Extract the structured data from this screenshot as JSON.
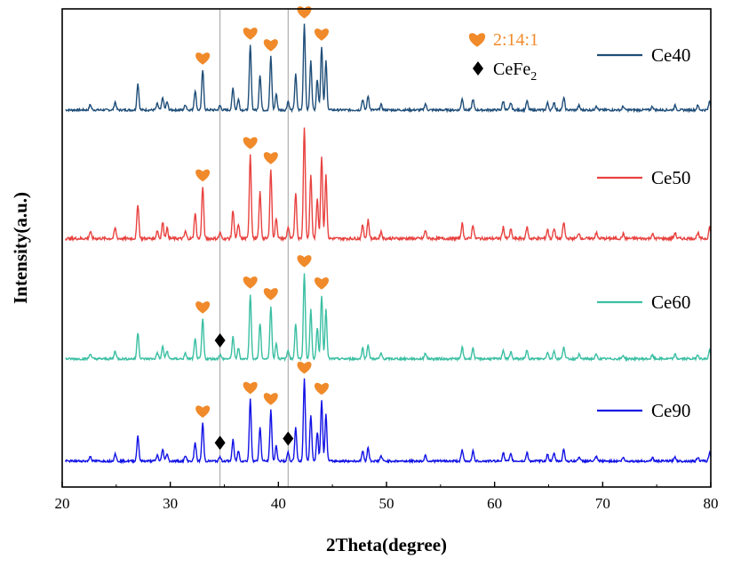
{
  "chart_data": {
    "type": "line",
    "xlabel": "2Theta(degree)",
    "ylabel": "Intensity(a.u.)",
    "xlim": [
      20,
      80
    ],
    "xticks": [
      20,
      30,
      40,
      50,
      60,
      70,
      80
    ],
    "vertical_reference_lines": [
      34.6,
      40.9
    ],
    "series": [
      {
        "name": "Ce40",
        "color": "#1f4e79",
        "offset": 3
      },
      {
        "name": "Ce50",
        "color": "#e8423f",
        "offset": 2
      },
      {
        "name": "Ce60",
        "color": "#3bbfa3",
        "offset": 1
      },
      {
        "name": "Ce90",
        "color": "#1212e6",
        "offset": 0
      }
    ],
    "peaks": [
      {
        "x": 22.6,
        "h": 0.06
      },
      {
        "x": 24.9,
        "h": 0.09
      },
      {
        "x": 27.0,
        "h": 0.3
      },
      {
        "x": 28.8,
        "h": 0.07
      },
      {
        "x": 29.3,
        "h": 0.14
      },
      {
        "x": 29.7,
        "h": 0.09
      },
      {
        "x": 31.4,
        "h": 0.06
      },
      {
        "x": 32.3,
        "h": 0.22
      },
      {
        "x": 33.0,
        "h": 0.45
      },
      {
        "x": 34.6,
        "h": 0.05
      },
      {
        "x": 35.8,
        "h": 0.25
      },
      {
        "x": 36.3,
        "h": 0.12
      },
      {
        "x": 37.4,
        "h": 0.73
      },
      {
        "x": 38.3,
        "h": 0.4
      },
      {
        "x": 39.3,
        "h": 0.6
      },
      {
        "x": 39.8,
        "h": 0.18
      },
      {
        "x": 40.9,
        "h": 0.1
      },
      {
        "x": 41.6,
        "h": 0.4
      },
      {
        "x": 42.4,
        "h": 0.97
      },
      {
        "x": 43.0,
        "h": 0.55
      },
      {
        "x": 43.6,
        "h": 0.35
      },
      {
        "x": 44.0,
        "h": 0.72
      },
      {
        "x": 44.4,
        "h": 0.55
      },
      {
        "x": 47.8,
        "h": 0.12
      },
      {
        "x": 48.3,
        "h": 0.16
      },
      {
        "x": 49.5,
        "h": 0.06
      },
      {
        "x": 53.6,
        "h": 0.07
      },
      {
        "x": 57.0,
        "h": 0.13
      },
      {
        "x": 58.0,
        "h": 0.12
      },
      {
        "x": 60.8,
        "h": 0.1
      },
      {
        "x": 61.5,
        "h": 0.08
      },
      {
        "x": 63.0,
        "h": 0.1
      },
      {
        "x": 64.9,
        "h": 0.08
      },
      {
        "x": 65.5,
        "h": 0.09
      },
      {
        "x": 66.4,
        "h": 0.14
      },
      {
        "x": 67.8,
        "h": 0.05
      },
      {
        "x": 69.4,
        "h": 0.05
      },
      {
        "x": 71.9,
        "h": 0.04
      },
      {
        "x": 74.6,
        "h": 0.04
      },
      {
        "x": 76.7,
        "h": 0.05
      },
      {
        "x": 78.8,
        "h": 0.05
      },
      {
        "x": 79.9,
        "h": 0.1
      }
    ],
    "phase_markers": [
      {
        "phase": "2:14:1",
        "symbol": "heart",
        "positions": [
          {
            "series": "Ce40",
            "x": [
              33.0,
              37.4,
              39.3,
              42.4,
              44.0
            ]
          },
          {
            "series": "Ce50",
            "x": [
              33.0,
              37.4,
              39.3
            ]
          },
          {
            "series": "Ce60",
            "x": [
              33.0,
              37.4,
              39.3,
              42.4,
              44.0
            ]
          },
          {
            "series": "Ce90",
            "x": [
              33.0,
              37.4,
              39.3,
              42.4,
              44.0
            ]
          }
        ]
      },
      {
        "phase": "CeFe",
        "phase_subscript": "2",
        "symbol": "diamond",
        "positions": [
          {
            "series": "Ce60",
            "x": [
              34.6
            ]
          },
          {
            "series": "Ce90",
            "x": [
              34.6,
              40.9
            ]
          }
        ]
      }
    ],
    "colors": {
      "heart": "#f08a2a",
      "diamond": "#000000",
      "reference_line": "#a0a0a0"
    }
  }
}
